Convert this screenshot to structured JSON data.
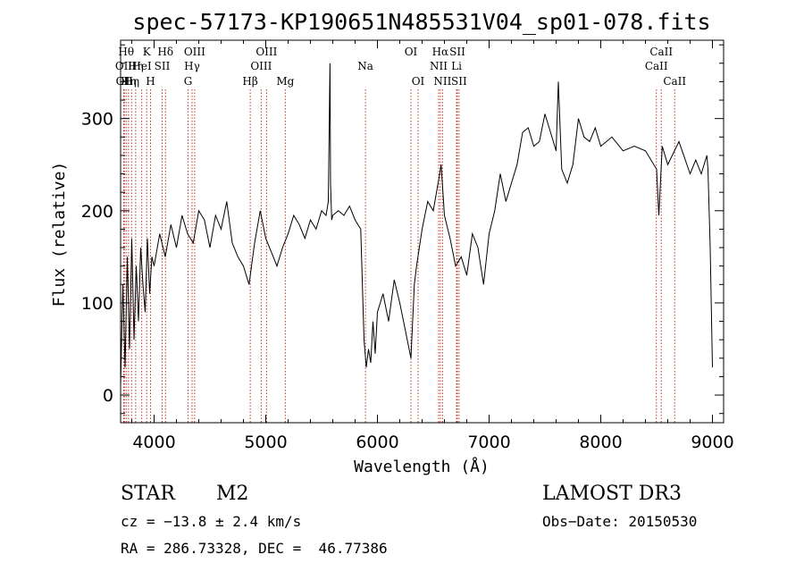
{
  "chart_data": {
    "type": "line",
    "title": "spec-57173-KP190651N485531V04_sp01-078.fits",
    "xlabel": "Wavelength (Å)",
    "ylabel": "Flux (relative)",
    "xlim": [
      3700,
      9100
    ],
    "ylim": [
      -30,
      385
    ],
    "xticks": [
      4000,
      5000,
      6000,
      7000,
      8000,
      9000
    ],
    "yticks": [
      0,
      100,
      200,
      300
    ],
    "series": [
      {
        "color": "#000000",
        "x": [
          3700,
          3720,
          3740,
          3760,
          3780,
          3800,
          3820,
          3840,
          3860,
          3880,
          3900,
          3920,
          3940,
          3960,
          3980,
          4000,
          4050,
          4100,
          4150,
          4200,
          4250,
          4300,
          4350,
          4400,
          4450,
          4500,
          4550,
          4600,
          4650,
          4700,
          4750,
          4800,
          4850,
          4900,
          4950,
          5000,
          5050,
          5100,
          5150,
          5200,
          5250,
          5300,
          5350,
          5400,
          5450,
          5500,
          5540,
          5560,
          5575,
          5580,
          5590,
          5600,
          5650,
          5700,
          5750,
          5800,
          5850,
          5880,
          5900,
          5920,
          5940,
          5960,
          5980,
          6000,
          6050,
          6100,
          6150,
          6200,
          6250,
          6300,
          6330,
          6350,
          6400,
          6450,
          6500,
          6550,
          6570,
          6600,
          6650,
          6700,
          6750,
          6800,
          6850,
          6900,
          6950,
          7000,
          7050,
          7100,
          7150,
          7200,
          7250,
          7300,
          7350,
          7400,
          7450,
          7500,
          7550,
          7600,
          7620,
          7650,
          7700,
          7750,
          7800,
          7850,
          7900,
          7950,
          8000,
          8100,
          8200,
          8300,
          8400,
          8500,
          8520,
          8550,
          8600,
          8700,
          8800,
          8850,
          8900,
          8950,
          8960,
          8980,
          9000
        ],
        "y": [
          10,
          120,
          30,
          150,
          50,
          170,
          60,
          140,
          80,
          160,
          120,
          90,
          170,
          110,
          150,
          140,
          175,
          150,
          185,
          160,
          195,
          175,
          165,
          200,
          190,
          160,
          195,
          180,
          210,
          165,
          150,
          140,
          120,
          165,
          200,
          170,
          155,
          140,
          160,
          175,
          195,
          185,
          170,
          190,
          180,
          200,
          195,
          210,
          360,
          230,
          190,
          195,
          200,
          195,
          205,
          190,
          180,
          60,
          30,
          50,
          35,
          80,
          45,
          90,
          110,
          80,
          125,
          100,
          70,
          40,
          120,
          140,
          180,
          210,
          200,
          235,
          250,
          195,
          170,
          140,
          150,
          130,
          175,
          160,
          120,
          175,
          200,
          240,
          210,
          230,
          250,
          285,
          290,
          270,
          275,
          305,
          285,
          265,
          340,
          245,
          230,
          250,
          300,
          280,
          275,
          290,
          270,
          280,
          265,
          270,
          265,
          245,
          195,
          270,
          250,
          275,
          240,
          255,
          240,
          260,
          245,
          160,
          30
        ]
      }
    ],
    "lines": [
      {
        "x": 3728,
        "label": "OII",
        "row": 2
      },
      {
        "x": 3734,
        "label": "OII",
        "row": 3
      },
      {
        "x": 3750,
        "label": "Hθ",
        "row": 1
      },
      {
        "x": 3771,
        "label": "Hη",
        "row": 3
      },
      {
        "x": 3798,
        "label": "Hη",
        "row": 3
      },
      {
        "x": 3835,
        "label": "Hη",
        "row": 2
      },
      {
        "x": 3889,
        "label": "HeI",
        "row": 2
      },
      {
        "x": 3934,
        "label": "K",
        "row": 1
      },
      {
        "x": 3968,
        "label": "H",
        "row": 3
      },
      {
        "x": 4072,
        "label": "SII",
        "row": 2
      },
      {
        "x": 4102,
        "label": "Hδ",
        "row": 1
      },
      {
        "x": 4304,
        "label": "G",
        "row": 3
      },
      {
        "x": 4340,
        "label": "Hγ",
        "row": 2
      },
      {
        "x": 4363,
        "label": "OIII",
        "row": 1
      },
      {
        "x": 4861,
        "label": "Hβ",
        "row": 3
      },
      {
        "x": 4959,
        "label": "OIII",
        "row": 2
      },
      {
        "x": 5007,
        "label": "OIII",
        "row": 1
      },
      {
        "x": 5175,
        "label": "Mg",
        "row": 3
      },
      {
        "x": 5893,
        "label": "Na",
        "row": 2
      },
      {
        "x": 6300,
        "label": "OI",
        "row": 1
      },
      {
        "x": 6364,
        "label": "OI",
        "row": 3
      },
      {
        "x": 6548,
        "label": "NII",
        "row": 2
      },
      {
        "x": 6563,
        "label": "Hα",
        "row": 1
      },
      {
        "x": 6583,
        "label": "NII",
        "row": 3
      },
      {
        "x": 6708,
        "label": "Li",
        "row": 2
      },
      {
        "x": 6716,
        "label": "SII",
        "row": 1
      },
      {
        "x": 6731,
        "label": "SII",
        "row": 3
      },
      {
        "x": 8498,
        "label": "CaII",
        "row": 2
      },
      {
        "x": 8542,
        "label": "CaII",
        "row": 1
      },
      {
        "x": 8662,
        "label": "CaII",
        "row": 3
      }
    ]
  },
  "info": {
    "class": "STAR",
    "subclass": "M2",
    "survey": "LAMOST DR3",
    "cz": "cz = −13.8 ± 2.4 km/s",
    "obs_date": "Obs−Date: 20150530",
    "coords": "RA = 286.73328, DEC =  46.77386"
  }
}
